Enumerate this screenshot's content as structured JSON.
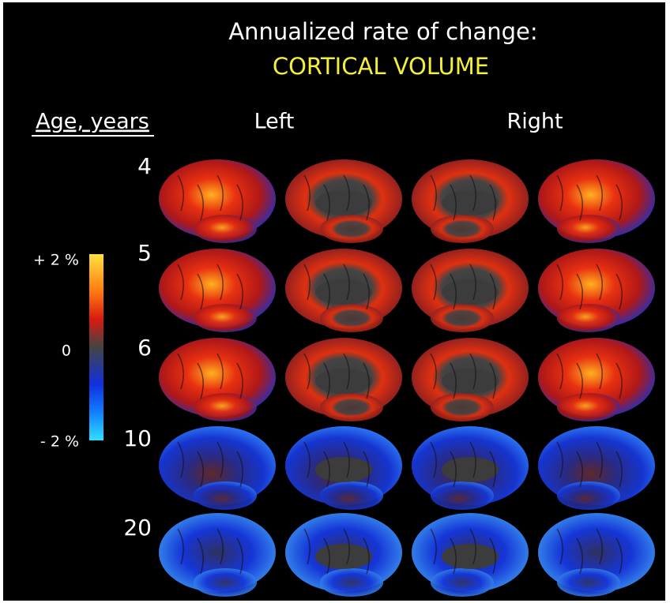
{
  "header": {
    "title": "Annualized rate of change:",
    "subtitle": "CORTICAL VOLUME"
  },
  "row_header": "Age, years",
  "columns": [
    "Left",
    "Right"
  ],
  "ages": [
    "4",
    "5",
    "6",
    "10",
    "20"
  ],
  "colorbar": {
    "labels": [
      "+ 2 %",
      "0",
      "- 2 %"
    ]
  }
}
